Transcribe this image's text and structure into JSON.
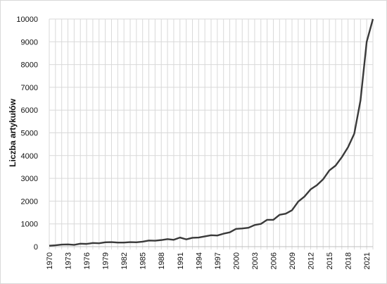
{
  "chart_data": {
    "type": "line",
    "title": "",
    "xlabel": "",
    "ylabel": "Liczba artykułów",
    "ylim": [
      0,
      10000
    ],
    "xlim": [
      1970,
      2022
    ],
    "grid": "vertical-and-horizontal",
    "legend": "none",
    "y_ticks": [
      "0",
      "1000",
      "2000",
      "3000",
      "4000",
      "5000",
      "6000",
      "7000",
      "8000",
      "9000",
      "10000"
    ],
    "x_ticks": [
      "1970",
      "1973",
      "1976",
      "1979",
      "1982",
      "1985",
      "1988",
      "1991",
      "1994",
      "1997",
      "2000",
      "2003",
      "2006",
      "2009",
      "2012",
      "2015",
      "2018",
      "2021"
    ],
    "line_color": "#3a3a3a",
    "series": [
      {
        "x": [
          1970,
          1971,
          1972,
          1973,
          1974,
          1975,
          1976,
          1977,
          1978,
          1979,
          1980,
          1981,
          1982,
          1983,
          1984,
          1985,
          1986,
          1987,
          1988,
          1989,
          1990,
          1991,
          1992,
          1993,
          1994,
          1995,
          1996,
          1997,
          1998,
          1999,
          2000,
          2001,
          2002,
          2003,
          2004,
          2005,
          2006,
          2007,
          2008,
          2009,
          2010,
          2011,
          2012,
          2013,
          2014,
          2015,
          2016,
          2017,
          2018,
          2019,
          2020,
          2021,
          2022
        ],
        "values": [
          40,
          60,
          90,
          100,
          80,
          130,
          120,
          160,
          150,
          190,
          200,
          180,
          180,
          200,
          190,
          220,
          270,
          260,
          290,
          330,
          300,
          400,
          320,
          390,
          400,
          450,
          500,
          490,
          570,
          630,
          780,
          800,
          830,
          950,
          1000,
          1180,
          1180,
          1400,
          1450,
          1600,
          1980,
          2200,
          2520,
          2700,
          2960,
          3350,
          3560,
          3930,
          4370,
          4960,
          6420,
          9000,
          10000
        ]
      }
    ]
  }
}
